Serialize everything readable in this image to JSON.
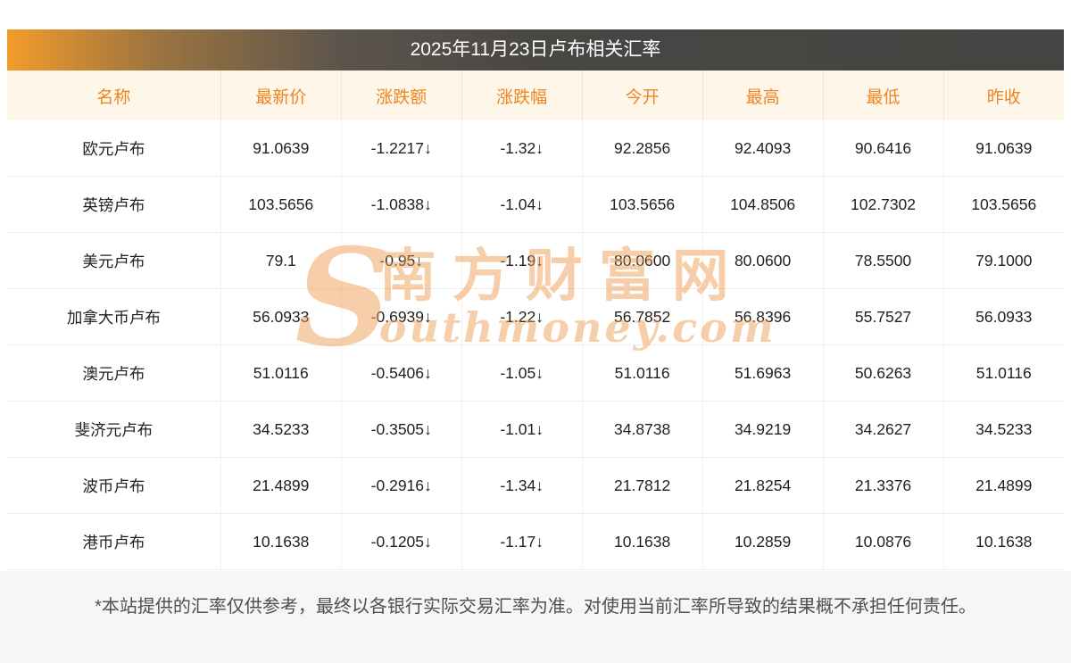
{
  "chart_data": {
    "type": "table",
    "title": "2025年11月23日卢布相关汇率",
    "columns": [
      {
        "key": "name",
        "label": "名称"
      },
      {
        "key": "latest",
        "label": "最新价"
      },
      {
        "key": "change",
        "label": "涨跌额"
      },
      {
        "key": "change_pct",
        "label": "涨跌幅"
      },
      {
        "key": "open",
        "label": "今开"
      },
      {
        "key": "high",
        "label": "最高"
      },
      {
        "key": "low",
        "label": "最低"
      },
      {
        "key": "prev_close",
        "label": "昨收"
      }
    ],
    "rows": [
      {
        "name": "欧元卢布",
        "latest": "91.0639",
        "change": "-1.2217↓",
        "change_pct": "-1.32↓",
        "open": "92.2856",
        "high": "92.4093",
        "low": "90.6416",
        "prev_close": "91.0639"
      },
      {
        "name": "英镑卢布",
        "latest": "103.5656",
        "change": "-1.0838↓",
        "change_pct": "-1.04↓",
        "open": "103.5656",
        "high": "104.8506",
        "low": "102.7302",
        "prev_close": "103.5656"
      },
      {
        "name": "美元卢布",
        "latest": "79.1",
        "change": "-0.95↓",
        "change_pct": "-1.19↓",
        "open": "80.0600",
        "high": "80.0600",
        "low": "78.5500",
        "prev_close": "79.1000"
      },
      {
        "name": "加拿大币卢布",
        "latest": "56.0933",
        "change": "-0.6939↓",
        "change_pct": "-1.22↓",
        "open": "56.7852",
        "high": "56.8396",
        "low": "55.7527",
        "prev_close": "56.0933"
      },
      {
        "name": "澳元卢布",
        "latest": "51.0116",
        "change": "-0.5406↓",
        "change_pct": "-1.05↓",
        "open": "51.0116",
        "high": "51.6963",
        "low": "50.6263",
        "prev_close": "51.0116"
      },
      {
        "name": "斐济元卢布",
        "latest": "34.5233",
        "change": "-0.3505↓",
        "change_pct": "-1.01↓",
        "open": "34.8738",
        "high": "34.9219",
        "low": "34.2627",
        "prev_close": "34.5233"
      },
      {
        "name": "波币卢布",
        "latest": "21.4899",
        "change": "-0.2916↓",
        "change_pct": "-1.34↓",
        "open": "21.7812",
        "high": "21.8254",
        "low": "21.3376",
        "prev_close": "21.4899"
      },
      {
        "name": "港币卢布",
        "latest": "10.1638",
        "change": "-0.1205↓",
        "change_pct": "-1.17↓",
        "open": "10.1638",
        "high": "10.2859",
        "low": "10.0876",
        "prev_close": "10.1638"
      }
    ]
  },
  "watermark": {
    "initial": "S",
    "cn": "南方财富网",
    "en_rest": "outhmoney.com"
  },
  "footer": {
    "disclaimer": "*本站提供的汇率仅供参考，最终以各银行实际交易汇率为准。对使用当前汇率所导致的结果概不承担任何责任。"
  },
  "colors": {
    "accent_orange": "#ef8522",
    "green": "#0e9b47",
    "header_bg": "#fdf6e9",
    "title_gradient_start": "#f49b2b",
    "title_gradient_end": "#454442",
    "watermark": "#ef9e55",
    "footer_bg": "#f6f6f6",
    "footer_text": "#4f4f4f"
  }
}
